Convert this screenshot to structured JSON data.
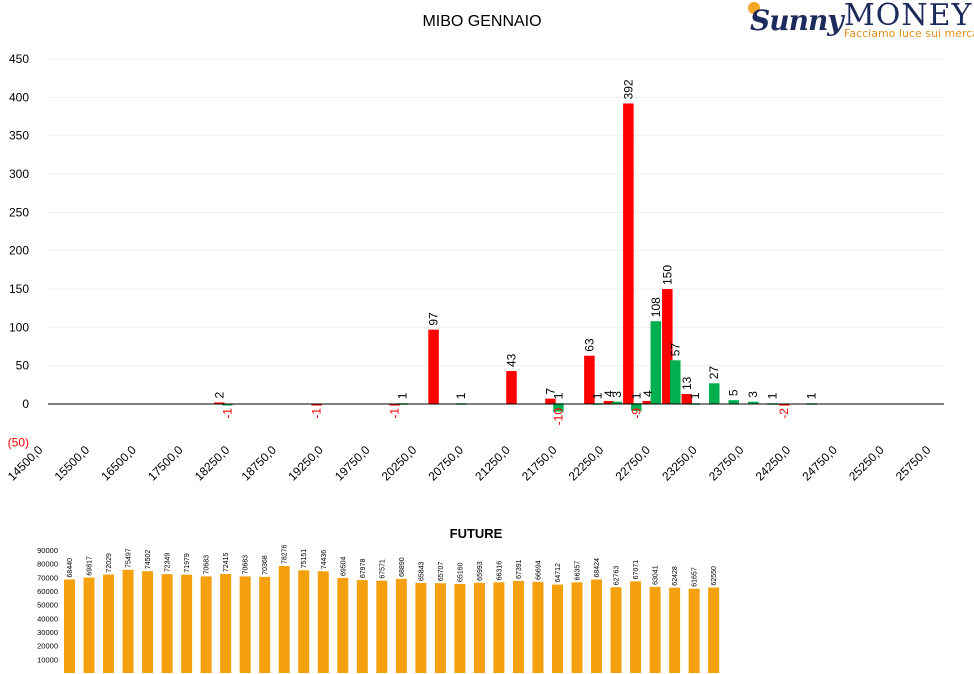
{
  "logo": {
    "brand_part1": "unny",
    "brand_part2": "MONEY",
    "tagline": "Facciamo luce sui mercati"
  },
  "chart_data": [
    {
      "type": "bar",
      "title": "MIBO GENNAIO",
      "ylim": [
        -50,
        450
      ],
      "yticks": [
        -50,
        0,
        50,
        100,
        150,
        200,
        250,
        300,
        350,
        400,
        450
      ],
      "ytick_labels": [
        "(50)",
        "0",
        "50",
        "100",
        "150",
        "200",
        "250",
        "300",
        "350",
        "400",
        "450"
      ],
      "grid": true,
      "legend": "none",
      "colors": {
        "call": "#ff0000",
        "put": "#00b050",
        "negative_label": "#ff0000"
      },
      "strike_step": 250,
      "strike_start": 14500,
      "strike_end": 25750,
      "xtick_labels": [
        "14500,0",
        "15500,0",
        "16500,0",
        "17500,0",
        "18250,0",
        "18750,0",
        "19250,0",
        "19750,0",
        "20250,0",
        "20750,0",
        "21250,0",
        "21750,0",
        "22250,0",
        "22750,0",
        "23250,0",
        "23750,0",
        "24250,0",
        "24750,0",
        "25250,0",
        "25750,0"
      ],
      "bars": [
        {
          "strike": 16500,
          "series": "call",
          "value": 2
        },
        {
          "strike": 16750,
          "series": "put",
          "value": -1
        },
        {
          "strike": 17750,
          "series": "call",
          "value": -1
        },
        {
          "strike": 18750,
          "series": "call",
          "value": -1
        },
        {
          "strike": 19000,
          "series": "put",
          "value": 1
        },
        {
          "strike": 19250,
          "series": "call",
          "value": 97
        },
        {
          "strike": 19750,
          "series": "put",
          "value": 1
        },
        {
          "strike": 20250,
          "series": "call",
          "value": 43
        },
        {
          "strike": 20750,
          "series": "call",
          "value": 7
        },
        {
          "strike": 21000,
          "series": "put",
          "value": 1
        },
        {
          "strike": 21000,
          "series": "put",
          "value": -10
        },
        {
          "strike": 21250,
          "series": "call",
          "value": 63
        },
        {
          "strike": 21500,
          "series": "call",
          "value": 4
        },
        {
          "strike": 21500,
          "series": "put",
          "value": 1
        },
        {
          "strike": 21750,
          "series": "call",
          "value": 392
        },
        {
          "strike": 21750,
          "series": "put",
          "value": 3
        },
        {
          "strike": 22000,
          "series": "put",
          "value": 1
        },
        {
          "strike": 22000,
          "series": "put",
          "value": -9
        },
        {
          "strike": 22000,
          "series": "call",
          "value": 4
        },
        {
          "strike": 22250,
          "series": "put",
          "value": 108
        },
        {
          "strike": 22250,
          "series": "call",
          "value": 150
        },
        {
          "strike": 22500,
          "series": "put",
          "value": 57
        },
        {
          "strike": 22500,
          "series": "call",
          "value": 13
        },
        {
          "strike": 22750,
          "series": "put",
          "value": 1
        },
        {
          "strike": 23000,
          "series": "put",
          "value": 27
        },
        {
          "strike": 23250,
          "series": "put",
          "value": 5
        },
        {
          "strike": 23500,
          "series": "put",
          "value": 3
        },
        {
          "strike": 23750,
          "series": "put",
          "value": 1
        },
        {
          "strike": 23750,
          "series": "call",
          "value": -2
        },
        {
          "strike": 24250,
          "series": "put",
          "value": 1
        }
      ]
    },
    {
      "type": "bar",
      "title": "FUTURE",
      "ylim": [
        0,
        90000
      ],
      "yticks": [
        10000,
        20000,
        30000,
        40000,
        50000,
        60000,
        70000,
        80000,
        90000
      ],
      "ytick_labels": [
        "10000",
        "20000",
        "30000",
        "40000",
        "50000",
        "60000",
        "70000",
        "80000",
        "90000"
      ],
      "grid": false,
      "legend": "none",
      "color": "#f5a00f",
      "values": [
        68440,
        69817,
        72029,
        75497,
        74502,
        72349,
        71979,
        70683,
        72415,
        70683,
        70368,
        78276,
        75151,
        74436,
        69504,
        67978,
        67571,
        68890,
        65843,
        65707,
        65160,
        65993,
        66316,
        67391,
        66694,
        64712,
        66357,
        68424,
        62763,
        67071,
        63041,
        62428,
        61657,
        62550
      ],
      "value_labels": [
        "68440",
        "69817",
        "72029",
        "75497",
        "74502",
        "72349",
        "71979",
        "70683",
        "72415",
        "70683",
        "70368",
        "78276",
        "75151",
        "74436",
        "69504",
        "67978",
        "67571",
        "68890",
        "65843",
        "65707",
        "65160",
        "65993",
        "66316",
        "67391",
        "66694",
        "64712",
        "66357",
        "68424",
        "62763",
        "67071",
        "63041",
        "62428",
        "61657",
        "62550"
      ]
    }
  ]
}
